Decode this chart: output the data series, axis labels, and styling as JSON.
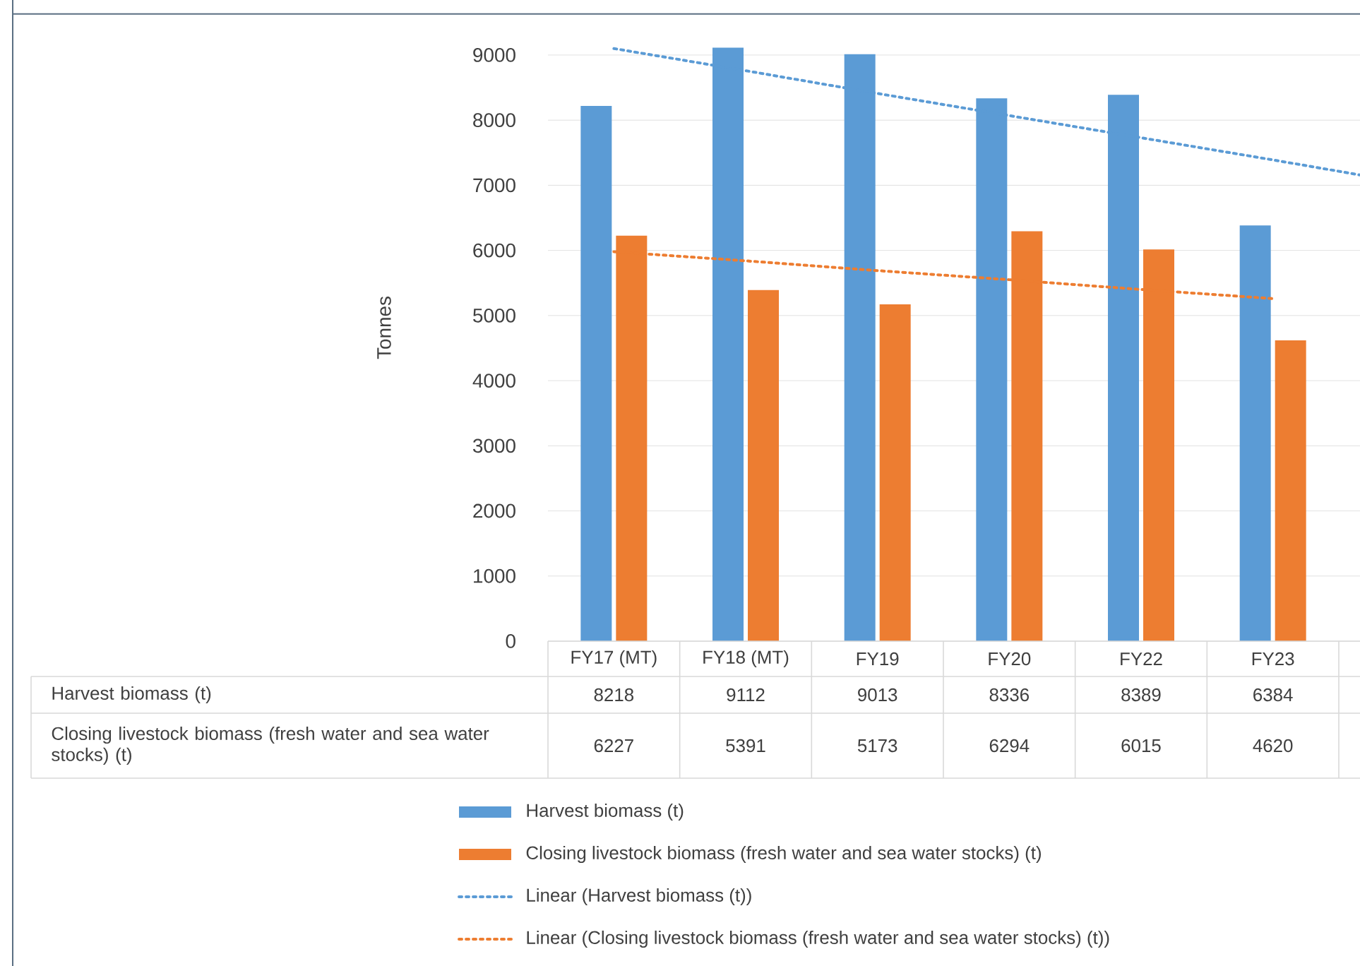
{
  "chart_data": {
    "type": "bar",
    "ylabel": "Tonnes",
    "categories": [
      "FY17 (MT)",
      "FY18 (MT)",
      "FY19",
      "FY20",
      "FY22",
      "FY23",
      null
    ],
    "series": [
      {
        "name": "Harvest biomass (t)",
        "color": "#5b9bd5",
        "values": [
          8218,
          9112,
          9013,
          8336,
          8389,
          6384,
          null
        ],
        "value_labels": [
          "8218",
          "9112",
          "9013",
          "8336",
          "8389",
          "6384",
          null
        ]
      },
      {
        "name": "Closing livestock biomass (fresh water and sea water stocks)  (t)",
        "color": "#ed7d31",
        "values": [
          6227,
          5391,
          5173,
          6294,
          6015,
          4620,
          null
        ],
        "value_labels": [
          "6227",
          "5391",
          "5173",
          "6294",
          "6015",
          "4620",
          null
        ]
      },
      {
        "name": "Linear (Harvest biomass (t))",
        "type": "line",
        "line_style": "dotted",
        "color": "#5b9bd5",
        "values": [
          9100,
          8760,
          8410,
          8070,
          7730,
          7390,
          7040
        ]
      },
      {
        "name": "Linear (Closing livestock biomass (fresh water and sea water stocks)  (t))",
        "type": "line",
        "line_style": "dotted",
        "color": "#ed7d31",
        "values": [
          5980,
          5840,
          5690,
          5550,
          5400,
          5260,
          null
        ]
      }
    ],
    "ylim": [
      0,
      9630
    ],
    "yticks": [
      0,
      1000,
      2000,
      3000,
      4000,
      5000,
      6000,
      7000,
      8000,
      9000
    ],
    "grid": "y",
    "legend": "bottom"
  }
}
